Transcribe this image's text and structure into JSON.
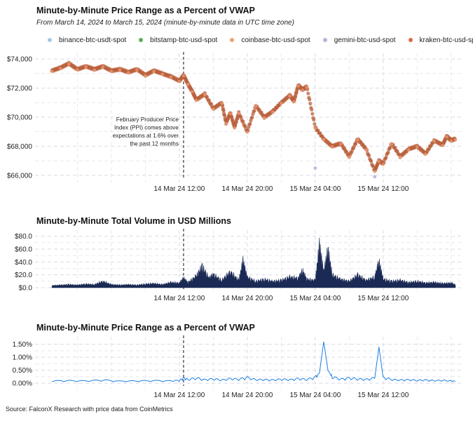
{
  "chart1": {
    "title": "Minute-by-Minute Price Range as a Percent of VWAP",
    "subtitle": "From March 14, 2024 to March 15, 2024 (minute-by-minute data in UTC time zone)"
  },
  "legend": [
    {
      "name": "binance-btc-usdt-spot",
      "color": "#a6c8e8"
    },
    {
      "name": "bitstamp-btc-usd-spot",
      "color": "#5fae5a"
    },
    {
      "name": "coinbase-btc-usd-spot",
      "color": "#f0a07a"
    },
    {
      "name": "gemini-btc-usd-spot",
      "color": "#b7b3e2"
    },
    {
      "name": "kraken-btc-usd-spot",
      "color": "#d86a4a"
    }
  ],
  "annotation": {
    "lines": [
      "February Producer Price",
      "Index (PPI) comes above",
      "expectations at 1.6% over",
      "the past 12 months"
    ],
    "event_time_hours": 12.5
  },
  "x_axis": {
    "min_hours": -3.5,
    "max_hours": 45.5,
    "tick_hours": [
      12,
      20,
      28,
      36
    ],
    "tick_labels": [
      "14 Mar 24 12:00",
      "14 Mar 24 20:00",
      "15 Mar 24 04:00",
      "15 Mar 24 12:00"
    ]
  },
  "chart_data": [
    {
      "type": "scatter",
      "title": "Minute-by-Minute Price Range as a Percent of VWAP",
      "x_unit": "hours since 14 Mar 24 00:00 UTC",
      "ylim": [
        65800,
        74200
      ],
      "yticks": [
        66000,
        68000,
        70000,
        72000,
        74000
      ],
      "ytick_labels": [
        "$66,000",
        "$68,000",
        "$70,000",
        "$72,000",
        "$74,000"
      ],
      "x": [
        -3,
        -2,
        -1,
        0,
        1,
        2,
        3,
        4,
        5,
        6,
        7,
        8,
        9,
        10,
        11,
        12,
        12.5,
        13,
        13.5,
        14,
        15,
        16,
        17,
        17.5,
        18,
        18.5,
        19,
        20,
        21,
        22,
        23,
        24,
        25,
        25.5,
        26,
        26.5,
        27,
        28,
        29,
        30,
        31,
        32,
        33,
        34,
        35,
        35.5,
        36,
        37,
        38,
        39,
        40,
        41,
        42,
        43,
        43.5,
        44,
        44.5
      ],
      "series": [
        {
          "name": "kraken-btc-usd-spot",
          "values": [
            73200,
            73400,
            73700,
            73300,
            73500,
            73300,
            73500,
            73200,
            73300,
            73100,
            73300,
            72900,
            73200,
            73000,
            72800,
            72500,
            72900,
            72300,
            71800,
            71200,
            71600,
            70600,
            71000,
            69600,
            70300,
            69300,
            70300,
            69000,
            70800,
            70000,
            70400,
            71000,
            71500,
            71100,
            72200,
            71900,
            72100,
            69300,
            68500,
            68000,
            68200,
            67300,
            68500,
            67800,
            66300,
            67000,
            66800,
            68200,
            67300,
            67800,
            68000,
            67500,
            68400,
            68100,
            68700,
            68400,
            68500
          ]
        },
        {
          "name": "coinbase-btc-usd-spot",
          "values": [
            73150,
            73350,
            73650,
            73250,
            73450,
            73250,
            73450,
            73150,
            73250,
            73050,
            73250,
            72850,
            73150,
            72950,
            72750,
            72450,
            72850,
            72250,
            71750,
            71150,
            71550,
            70550,
            70950,
            69550,
            70250,
            69250,
            70250,
            68950,
            70750,
            69950,
            70350,
            70950,
            71450,
            71050,
            72150,
            71850,
            72050,
            69250,
            68450,
            67950,
            68150,
            67250,
            68450,
            67750,
            66250,
            66950,
            66750,
            68150,
            67250,
            67750,
            67950,
            67450,
            68350,
            68050,
            68650,
            68350,
            68450
          ]
        },
        {
          "name": "gemini-btc-usd-spot",
          "values": [
            null,
            null,
            null,
            null,
            null,
            null,
            null,
            null,
            null,
            null,
            null,
            null,
            null,
            null,
            null,
            null,
            null,
            null,
            null,
            null,
            null,
            null,
            null,
            null,
            null,
            null,
            null,
            null,
            null,
            null,
            null,
            null,
            null,
            null,
            null,
            null,
            null,
            66500,
            null,
            null,
            null,
            null,
            null,
            null,
            65900,
            null,
            null,
            null,
            null,
            null,
            null,
            null,
            null,
            null,
            null,
            null,
            null
          ]
        }
      ]
    },
    {
      "type": "area",
      "title": "Minute-by-Minute Total Volume in USD Millions",
      "x_unit": "hours since 14 Mar 24 00:00 UTC",
      "ylim": [
        0,
        85
      ],
      "yticks": [
        0,
        20,
        40,
        60,
        80
      ],
      "ytick_labels": [
        "$0.0",
        "$20.0",
        "$40.0",
        "$60.0",
        "$80.0"
      ],
      "x": [
        -3,
        -2,
        -1,
        0,
        1,
        2,
        3,
        4,
        5,
        6,
        7,
        8,
        9,
        10,
        11,
        12,
        12.5,
        13,
        14,
        14.7,
        15.5,
        16,
        17,
        18,
        19,
        19.5,
        20,
        21,
        22,
        23,
        24,
        25,
        26,
        26.5,
        27,
        28,
        28.5,
        29,
        29.5,
        30,
        31,
        32,
        33,
        34,
        35,
        35.5,
        36,
        37,
        38,
        39,
        40,
        41,
        42,
        43,
        44,
        44.5
      ],
      "values": [
        4,
        5,
        6,
        5,
        7,
        6,
        12,
        6,
        5,
        6,
        5,
        7,
        8,
        6,
        10,
        9,
        18,
        10,
        22,
        40,
        18,
        25,
        14,
        30,
        14,
        50,
        20,
        12,
        16,
        12,
        14,
        20,
        18,
        32,
        16,
        14,
        80,
        30,
        72,
        24,
        16,
        12,
        24,
        14,
        20,
        50,
        16,
        12,
        14,
        10,
        12,
        9,
        10,
        8,
        9,
        5
      ]
    },
    {
      "type": "line",
      "title": "Minute-by-Minute Price Range as a Percent of VWAP",
      "x_unit": "hours since 14 Mar 24 00:00 UTC",
      "ylim": [
        -0.0005,
        0.0168
      ],
      "yticks": [
        0,
        0.005,
        0.01,
        0.015
      ],
      "ytick_labels": [
        "0.00%",
        "0.50%",
        "1.00%",
        "1.50%"
      ],
      "x": [
        -3,
        -1,
        1,
        3,
        5,
        7,
        9,
        11,
        12,
        12.5,
        13,
        14,
        15,
        16,
        17,
        18,
        19,
        20,
        21,
        22,
        23,
        24,
        25,
        26,
        27,
        28,
        28.5,
        29,
        29.5,
        30,
        31,
        32,
        33,
        34,
        35,
        35.5,
        36,
        37,
        38,
        39,
        40,
        41,
        42,
        43,
        44,
        44.5
      ],
      "values": [
        0.0008,
        0.0009,
        0.0008,
        0.0011,
        0.0007,
        0.0008,
        0.0009,
        0.0008,
        0.001,
        0.0018,
        0.0013,
        0.0018,
        0.0012,
        0.0015,
        0.0011,
        0.0016,
        0.0014,
        0.002,
        0.0012,
        0.0013,
        0.0011,
        0.0014,
        0.0012,
        0.0016,
        0.0013,
        0.0021,
        0.004,
        0.016,
        0.005,
        0.0022,
        0.0014,
        0.0018,
        0.0015,
        0.0013,
        0.0018,
        0.014,
        0.002,
        0.0013,
        0.0011,
        0.0012,
        0.001,
        0.0011,
        0.0009,
        0.001,
        0.0008,
        0.0007
      ]
    }
  ],
  "chart2": {
    "title": "Minute-by-Minute Total Volume in USD Millions"
  },
  "chart3": {
    "title": "Minute-by-Minute Price Range as a Percent of VWAP"
  },
  "source": "Source: FalconX Research with price data from CoinMetrics",
  "colors": {
    "price": "#b9603c",
    "volume": "#1b2a55",
    "range": "#1e7fe0",
    "grid": "#d9d9e6",
    "event": "#333333"
  }
}
